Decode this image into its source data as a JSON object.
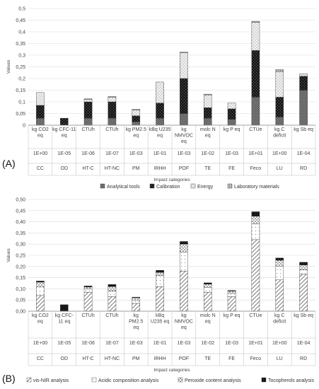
{
  "chart_data": [
    {
      "type": "bar",
      "stacked": true,
      "panel_label": "(A)",
      "ylabel": "Values",
      "xlabel": "Impact categories",
      "ylim": [
        0,
        0.5
      ],
      "yticks": [
        "0",
        "0,05",
        "0,1",
        "0,15",
        "0,2",
        "0,25",
        "0,3",
        "0,35",
        "0,4",
        "0,45",
        "0,5"
      ],
      "grid": "horizontal",
      "legend_position": "bottom",
      "categories": [
        "CC",
        "OD",
        "HT-C",
        "HT-NC",
        "PM",
        "IRHH",
        "POF",
        "TE",
        "FE",
        "Feco",
        "LU",
        "RD"
      ],
      "units": [
        "kg CO2 eq",
        "kg CFC-11 eq",
        "CTUh",
        "CTUh",
        "kg PM2.5 eq",
        "kBq U235 eq",
        "kg NMVOC eq",
        "molc N eq",
        "kg P eq",
        "CTUe",
        "kg C deficit",
        "kg Sb eq"
      ],
      "scales": [
        "1E+00",
        "1E-05",
        "1E-06",
        "1E-07",
        "1E-03",
        "1E-01",
        "1E-03",
        "1E-02",
        "1E-03",
        "1E+01",
        "1E+00",
        "1E-04"
      ],
      "series": [
        {
          "name": "Analytical tools",
          "values": [
            0.03,
            0.0,
            0.03,
            0.03,
            0.015,
            0.03,
            0.05,
            0.03,
            0.025,
            0.12,
            0.035,
            0.15
          ]
        },
        {
          "name": "Calibration",
          "values": [
            0.055,
            0.03,
            0.07,
            0.07,
            0.025,
            0.065,
            0.15,
            0.045,
            0.045,
            0.2,
            0.085,
            0.06
          ]
        },
        {
          "name": "Energy",
          "values": [
            0.055,
            0.0,
            0.01,
            0.02,
            0.025,
            0.09,
            0.11,
            0.055,
            0.025,
            0.12,
            0.11,
            0.01
          ]
        },
        {
          "name": "Laboratory materials",
          "values": [
            0.0,
            0.0,
            0.003,
            0.003,
            0.003,
            0.0,
            0.003,
            0.003,
            0.0,
            0.005,
            0.008,
            0.0
          ]
        }
      ]
    },
    {
      "type": "bar",
      "stacked": true,
      "panel_label": "(B)",
      "ylabel": "Values",
      "xlabel": "Impact categories",
      "ylim": [
        0,
        0.5
      ],
      "yticks": [
        "0,00",
        "0,05",
        "0,10",
        "0,15",
        "0,20",
        "0,25",
        "0,30",
        "0,35",
        "0,40",
        "0,45",
        "0,50"
      ],
      "grid": "horizontal",
      "legend_position": "bottom",
      "categories": [
        "CC",
        "OD",
        "HT-C",
        "HT-NC",
        "PM",
        "IRHH",
        "POF",
        "TE",
        "FE",
        "Feco",
        "LU",
        "RD"
      ],
      "units": [
        "kg CO2 eq",
        "kg CFC-11 eq",
        "CTUh",
        "CTUh",
        "kg PM2.5 eq",
        "kBq U235 eq",
        "kg NMVOC eq",
        "molc N eq",
        "kg P eq",
        "CTUe",
        "kg C deficit",
        "kg Sb eq"
      ],
      "scales": [
        "1E+00",
        "1E-05",
        "1E-06",
        "1E-07",
        "1E-03",
        "1E-01",
        "1E-03",
        "1E-02",
        "1E-03",
        "1E+01",
        "1E+00",
        "1E-04"
      ],
      "series": [
        {
          "name": "vis-NIR analysis",
          "values": [
            0.07,
            0.0,
            0.085,
            0.065,
            0.035,
            0.11,
            0.18,
            0.085,
            0.065,
            0.32,
            0.14,
            0.165
          ]
        },
        {
          "name": "Acidic composition analysis",
          "values": [
            0.04,
            0.0,
            0.015,
            0.025,
            0.015,
            0.05,
            0.085,
            0.02,
            0.015,
            0.07,
            0.06,
            0.02
          ]
        },
        {
          "name": "Peroxide content analysis",
          "values": [
            0.02,
            0.0,
            0.008,
            0.02,
            0.01,
            0.013,
            0.035,
            0.016,
            0.01,
            0.035,
            0.028,
            0.022
          ]
        },
        {
          "name": "Tocopherols analysis",
          "values": [
            0.005,
            0.029,
            0.005,
            0.01,
            0.003,
            0.01,
            0.012,
            0.006,
            0.003,
            0.02,
            0.01,
            0.012
          ]
        }
      ]
    }
  ]
}
